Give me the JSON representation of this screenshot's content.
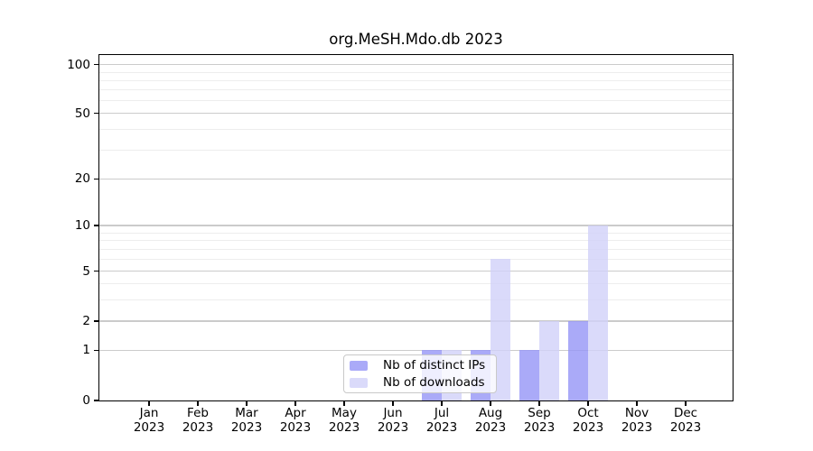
{
  "chart_data": {
    "type": "bar",
    "title": "org.MeSH.Mdo.db 2023",
    "year": "2023",
    "categories": [
      "Jan",
      "Feb",
      "Mar",
      "Apr",
      "May",
      "Jun",
      "Jul",
      "Aug",
      "Sep",
      "Oct",
      "Nov",
      "Dec"
    ],
    "series": [
      {
        "name": "Nb of distinct IPs",
        "color": "#aaaaf8",
        "values": [
          0,
          0,
          0,
          0,
          0,
          0,
          1,
          1,
          1,
          2,
          0,
          0
        ]
      },
      {
        "name": "Nb of downloads",
        "color": "#dadafa",
        "values": [
          0,
          0,
          0,
          0,
          0,
          0,
          1,
          6,
          2,
          10,
          0,
          0
        ]
      }
    ],
    "y_major_ticks": [
      0,
      1,
      2,
      5,
      10,
      20,
      50,
      100
    ],
    "y_minor_gridlines": [
      3,
      4,
      6,
      7,
      8,
      9,
      30,
      40,
      60,
      70,
      80,
      90
    ],
    "ylim": [
      0,
      100
    ],
    "yscale": "log above 1, linear below 1",
    "grid": "on",
    "legend_position": "lower center",
    "axis_color": "#000000",
    "major_grid_color": "#cbcbcb",
    "minor_grid_color": "#ededed",
    "background_color": "#ffffff"
  }
}
